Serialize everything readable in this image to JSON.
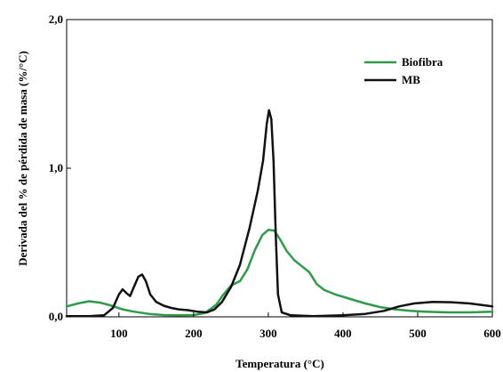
{
  "chart_data": {
    "type": "line",
    "xlabel": "Temperatura (°C)",
    "ylabel": "Derivada del % de pérdida de masa (%/°C)",
    "xlim": [
      30,
      600
    ],
    "ylim": [
      0,
      2.0
    ],
    "x_ticks": [
      100,
      200,
      300,
      400,
      500,
      600
    ],
    "x_tick_labels": [
      "100",
      "200",
      "300",
      "400",
      "500",
      "600"
    ],
    "y_ticks": [
      0,
      1.0,
      2.0
    ],
    "y_tick_labels": [
      "0,0",
      "1,0",
      "2,0"
    ],
    "grid": false,
    "legend_position": "top-right",
    "series": [
      {
        "name": "Biofibra",
        "color": "#2e9a4a",
        "points": [
          [
            30,
            0.07
          ],
          [
            45,
            0.09
          ],
          [
            60,
            0.105
          ],
          [
            75,
            0.095
          ],
          [
            90,
            0.075
          ],
          [
            105,
            0.05
          ],
          [
            120,
            0.035
          ],
          [
            140,
            0.02
          ],
          [
            160,
            0.012
          ],
          [
            180,
            0.01
          ],
          [
            200,
            0.012
          ],
          [
            215,
            0.025
          ],
          [
            230,
            0.08
          ],
          [
            240,
            0.15
          ],
          [
            250,
            0.21
          ],
          [
            262,
            0.24
          ],
          [
            272,
            0.32
          ],
          [
            282,
            0.45
          ],
          [
            292,
            0.55
          ],
          [
            300,
            0.585
          ],
          [
            308,
            0.58
          ],
          [
            316,
            0.52
          ],
          [
            325,
            0.44
          ],
          [
            335,
            0.38
          ],
          [
            345,
            0.34
          ],
          [
            355,
            0.3
          ],
          [
            365,
            0.22
          ],
          [
            375,
            0.18
          ],
          [
            390,
            0.15
          ],
          [
            410,
            0.12
          ],
          [
            430,
            0.09
          ],
          [
            450,
            0.065
          ],
          [
            470,
            0.05
          ],
          [
            490,
            0.04
          ],
          [
            510,
            0.035
          ],
          [
            540,
            0.03
          ],
          [
            570,
            0.03
          ],
          [
            600,
            0.035
          ]
        ]
      },
      {
        "name": "MB",
        "color": "#111111",
        "points": [
          [
            30,
            0.005
          ],
          [
            60,
            0.005
          ],
          [
            80,
            0.01
          ],
          [
            92,
            0.06
          ],
          [
            100,
            0.15
          ],
          [
            105,
            0.185
          ],
          [
            110,
            0.16
          ],
          [
            115,
            0.14
          ],
          [
            120,
            0.2
          ],
          [
            126,
            0.27
          ],
          [
            131,
            0.285
          ],
          [
            136,
            0.24
          ],
          [
            142,
            0.15
          ],
          [
            150,
            0.1
          ],
          [
            160,
            0.075
          ],
          [
            170,
            0.06
          ],
          [
            180,
            0.05
          ],
          [
            192,
            0.045
          ],
          [
            205,
            0.035
          ],
          [
            218,
            0.03
          ],
          [
            228,
            0.05
          ],
          [
            238,
            0.1
          ],
          [
            250,
            0.2
          ],
          [
            262,
            0.35
          ],
          [
            275,
            0.6
          ],
          [
            286,
            0.85
          ],
          [
            293,
            1.05
          ],
          [
            298,
            1.3
          ],
          [
            301,
            1.39
          ],
          [
            304,
            1.33
          ],
          [
            307,
            1.05
          ],
          [
            310,
            0.55
          ],
          [
            313,
            0.15
          ],
          [
            318,
            0.03
          ],
          [
            330,
            0.01
          ],
          [
            360,
            0.005
          ],
          [
            400,
            0.01
          ],
          [
            430,
            0.02
          ],
          [
            455,
            0.04
          ],
          [
            475,
            0.07
          ],
          [
            495,
            0.09
          ],
          [
            520,
            0.1
          ],
          [
            545,
            0.098
          ],
          [
            570,
            0.09
          ],
          [
            600,
            0.07
          ]
        ]
      }
    ]
  }
}
